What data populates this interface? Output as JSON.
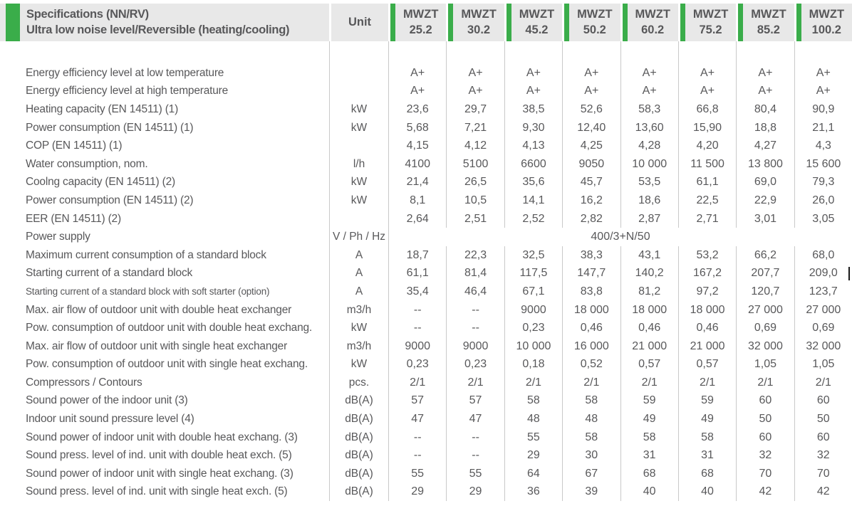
{
  "colors": {
    "accent_green": "#3aad4a",
    "header_bg": "#e8e8e8",
    "text_color": "#58585a",
    "grid_line": "#c9c9c9"
  },
  "header": {
    "title_line1": "Specifications (NN/RV)",
    "title_line2": "Ultra low noise level/Reversible (heating/cooling)",
    "unit_label": "Unit",
    "models": [
      {
        "name": "MWZT",
        "size": "25.2"
      },
      {
        "name": "MWZT",
        "size": "30.2"
      },
      {
        "name": "MWZT",
        "size": "45.2"
      },
      {
        "name": "MWZT",
        "size": "50.2"
      },
      {
        "name": "MWZT",
        "size": "60.2"
      },
      {
        "name": "MWZT",
        "size": "75.2"
      },
      {
        "name": "MWZT",
        "size": "85.2"
      },
      {
        "name": "MWZT",
        "size": "100.2"
      }
    ]
  },
  "rows": [
    {
      "label": "Energy efficiency level at low temperature",
      "unit": "",
      "values": [
        "A+",
        "A+",
        "A+",
        "A+",
        "A+",
        "A+",
        "A+",
        "A+"
      ]
    },
    {
      "label": "Energy efficiency level at high temperature",
      "unit": "",
      "values": [
        "A+",
        "A+",
        "A+",
        "A+",
        "A+",
        "A+",
        "A+",
        "A+"
      ]
    },
    {
      "label": "Heating capacity (EN 14511)  (1)",
      "unit": "kW",
      "values": [
        "23,6",
        "29,7",
        "38,5",
        "52,6",
        "58,3",
        "66,8",
        "80,4",
        "90,9"
      ]
    },
    {
      "label": "Power consumption (EN 14511)  (1)",
      "unit": "kW",
      "values": [
        "5,68",
        "7,21",
        "9,30",
        "12,40",
        "13,60",
        "15,90",
        "18,8",
        "21,1"
      ]
    },
    {
      "label": "COP (EN 14511)  (1)",
      "unit": "",
      "values": [
        "4,15",
        "4,12",
        "4,13",
        "4,25",
        "4,28",
        "4,20",
        "4,27",
        "4,3"
      ]
    },
    {
      "label": "Water consumption, nom.",
      "unit": "l/h",
      "values": [
        "4100",
        "5100",
        "6600",
        "9050",
        "10 000",
        "11 500",
        "13 800",
        "15 600"
      ]
    },
    {
      "label": "Coolng capacity (EN 14511)  (2)",
      "unit": "kW",
      "values": [
        "21,4",
        "26,5",
        "35,6",
        "45,7",
        "53,5",
        "61,1",
        "69,0",
        "79,3"
      ]
    },
    {
      "label": "Power consumption (EN 14511)  (2)",
      "unit": "kW",
      "values": [
        "8,1",
        "10,5",
        "14,1",
        "16,2",
        "18,6",
        "22,5",
        "22,9",
        "26,0"
      ]
    },
    {
      "label": "EER (EN 14511)  (2)",
      "unit": "",
      "values": [
        "2,64",
        "2,51",
        "2,52",
        "2,82",
        "2,87",
        "2,71",
        "3,01",
        "3,05"
      ]
    },
    {
      "label": "Power supply",
      "unit": "V / Ph / Hz",
      "span_value": "400/3+N/50"
    },
    {
      "label": "Maximum current consumption of a standard block",
      "unit": "A",
      "values": [
        "18,7",
        "22,3",
        "32,5",
        "38,3",
        "43,1",
        "53,2",
        "66,2",
        "68,0"
      ]
    },
    {
      "label": "Starting current of a standard block",
      "unit": "A",
      "values": [
        "61,1",
        "81,4",
        "117,5",
        "147,7",
        "140,2",
        "167,2",
        "207,7",
        "209,0"
      ],
      "caret": true
    },
    {
      "label": "Starting current of a standard block with soft starter (option)",
      "unit": "A",
      "values": [
        "35,4",
        "46,4",
        "67,1",
        "83,8",
        "81,2",
        "97,2",
        "120,7",
        "123,7"
      ],
      "small": true
    },
    {
      "label": "Max. air flow of outdoor unit with double heat exchanger",
      "unit": "m3/h",
      "values": [
        "--",
        "--",
        "9000",
        "18 000",
        "18 000",
        "18 000",
        "27 000",
        "27 000"
      ]
    },
    {
      "label": "Pow. consumption of outdoor unit with double heat exchang.",
      "unit": "kW",
      "values": [
        "--",
        "--",
        "0,23",
        "0,46",
        "0,46",
        "0,46",
        "0,69",
        "0,69"
      ]
    },
    {
      "label": "Max. air flow of outdoor unit with single heat exchanger",
      "unit": "m3/h",
      "values": [
        "9000",
        "9000",
        "10 000",
        "16 000",
        "21 000",
        "21 000",
        "32 000",
        "32 000"
      ]
    },
    {
      "label": "Pow. consumption of outdoor unit with single heat exchang.",
      "unit": "kW",
      "values": [
        "0,23",
        "0,23",
        "0,18",
        "0,52",
        "0,57",
        "0,57",
        "1,05",
        "1,05"
      ]
    },
    {
      "label": "Compressors / Contours",
      "unit": "pcs.",
      "values": [
        "2/1",
        "2/1",
        "2/1",
        "2/1",
        "2/1",
        "2/1",
        "2/1",
        "2/1"
      ]
    },
    {
      "label": "Sound power of the indoor unit (3)",
      "unit": "dB(A)",
      "values": [
        "57",
        "57",
        "58",
        "58",
        "59",
        "59",
        "60",
        "60"
      ]
    },
    {
      "label": "Indoor unit sound pressure level  (4)",
      "unit": "dB(A)",
      "values": [
        "47",
        "47",
        "48",
        "48",
        "49",
        "49",
        "50",
        "50"
      ]
    },
    {
      "label": "Sound power of indoor unit with double heat exchang. (3)",
      "unit": "dB(A)",
      "values": [
        "--",
        "--",
        "55",
        "58",
        "58",
        "58",
        "60",
        "60"
      ]
    },
    {
      "label": "Sound press. level of ind. unit with double heat exch. (5)",
      "unit": "dB(A)",
      "values": [
        "--",
        "--",
        "29",
        "30",
        "31",
        "31",
        "32",
        "32"
      ]
    },
    {
      "label": "Sound power of indoor unit with single heat exchang. (3)",
      "unit": "dB(A)",
      "values": [
        "55",
        "55",
        "64",
        "67",
        "68",
        "68",
        "70",
        "70"
      ]
    },
    {
      "label": "Sound press. level of ind. unit with single heat exch. (5)",
      "unit": "dB(A)",
      "values": [
        "29",
        "29",
        "36",
        "39",
        "40",
        "40",
        "42",
        "42"
      ]
    }
  ]
}
